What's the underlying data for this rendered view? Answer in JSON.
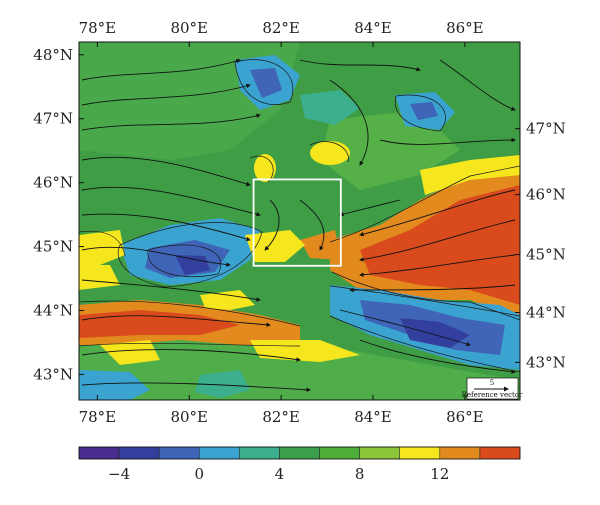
{
  "map": {
    "lon_ticks": [
      {
        "lon": 78,
        "label": "78°E"
      },
      {
        "lon": 80,
        "label": "80°E"
      },
      {
        "lon": 82,
        "label": "82°E"
      },
      {
        "lon": 84,
        "label": "84°E"
      },
      {
        "lon": 86,
        "label": "86°E"
      }
    ],
    "lat_ticks": [
      {
        "lat": 48,
        "label": "48°N"
      },
      {
        "lat": 47,
        "label": "47°N"
      },
      {
        "lat": 46,
        "label": "46°N"
      },
      {
        "lat": 45,
        "label": "45°N"
      },
      {
        "lat": 44,
        "label": "44°N"
      },
      {
        "lat": 43,
        "label": "43°N"
      }
    ],
    "lon_range": [
      77.6,
      87.2
    ],
    "lat_range": [
      42.6,
      48.2
    ],
    "highlight_box": {
      "lon": [
        81.4,
        83.3
      ],
      "lat": [
        44.7,
        46.05
      ]
    },
    "reference_vector": {
      "value": "5",
      "label": "Reference vector"
    }
  },
  "colorbar": {
    "colors": [
      "#4a2d8f",
      "#333f9c",
      "#3f64b8",
      "#3aa3cf",
      "#3caf8f",
      "#3a9e4a",
      "#4fae3a",
      "#8cc43a",
      "#f5e61e",
      "#e38a1f",
      "#d94b1c"
    ],
    "labels": [
      {
        "value": -4,
        "text": "−4"
      },
      {
        "value": 0,
        "text": "0"
      },
      {
        "value": 4,
        "text": "4"
      },
      {
        "value": 8,
        "text": "8"
      },
      {
        "value": 12,
        "text": "12"
      }
    ]
  }
}
